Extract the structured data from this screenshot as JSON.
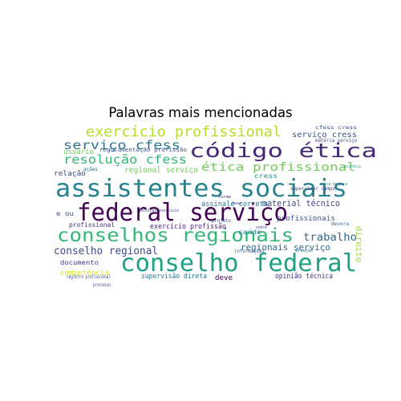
{
  "title": "Palavras mais mencionadas",
  "words": [
    {
      "text": "exercício profissional",
      "color": "#b5de2b"
    },
    {
      "text": "serviço cfess",
      "color": "#2a788e"
    },
    {
      "text": "código ética",
      "color": "#482878"
    },
    {
      "text": "resolução cfess",
      "color": "#35b779"
    },
    {
      "text": "ética profissional",
      "color": "#6ece58"
    },
    {
      "text": "assistentes sociais",
      "color": "#26828e"
    },
    {
      "text": "federal serviço",
      "color": "#440154"
    },
    {
      "text": "conselhos regionais",
      "color": "#35b779"
    },
    {
      "text": "conselho federal",
      "color": "#1fa187"
    },
    {
      "text": "conselho regional",
      "color": "#3e4989"
    },
    {
      "text": "trabalho",
      "color": "#31688e"
    },
    {
      "text": "material técnico",
      "color": "#3e4989"
    },
    {
      "text": "regionais serviço",
      "color": "#31688e"
    },
    {
      "text": "serviço cress",
      "color": "#3b528b"
    },
    {
      "text": "regional serviço",
      "color": "#6ece58"
    },
    {
      "text": "assinale correta",
      "color": "#2a788e"
    },
    {
      "text": "exercício profissão",
      "color": "#482878"
    },
    {
      "text": "profissionais",
      "color": "#3b528b"
    },
    {
      "text": "direito",
      "color": "#a0da39"
    },
    {
      "text": "usuário",
      "color": "#6ece58"
    },
    {
      "text": "regulamentação profissão",
      "color": "#3b528b"
    },
    {
      "text": "relação",
      "color": "#3e4989"
    },
    {
      "text": "ações",
      "color": "#31688e"
    },
    {
      "text": "cress",
      "color": "#21918c"
    },
    {
      "text": "saúde",
      "color": "#26828e"
    },
    {
      "text": "profissional",
      "color": "#472d7b"
    },
    {
      "text": "e ou",
      "color": "#3b528b"
    },
    {
      "text": "documento",
      "color": "#443983"
    },
    {
      "text": "competência",
      "color": "#d8e219"
    },
    {
      "text": "supervisão direta",
      "color": "#2a788e"
    },
    {
      "text": "deve",
      "color": "#440154"
    },
    {
      "text": "opinião técnica",
      "color": "#472d7b"
    },
    {
      "text": "cfess cress",
      "color": "#3e4989"
    },
    {
      "text": "matéria serviço",
      "color": "#3b528b"
    },
    {
      "text": "devera",
      "color": "#31688e"
    },
    {
      "text": "assistência",
      "color": "#1fa187"
    },
    {
      "text": "projeto",
      "color": "#3e4989"
    },
    {
      "text": "informações",
      "color": "#3b528b"
    },
    {
      "text": "atuação",
      "color": "#2a788e"
    },
    {
      "text": "supervisor campo",
      "color": "#3e4989"
    },
    {
      "text": "etica técnica",
      "color": "#2a788e"
    },
    {
      "text": "registro profissional",
      "color": "#3e4989"
    },
    {
      "text": "técnicas exercício",
      "color": "#3e4989"
    },
    {
      "text": "processo",
      "color": "#3e4989"
    },
    {
      "text": "forma",
      "color": "#482878"
    },
    {
      "text": "base",
      "color": "#3b528b"
    },
    {
      "text": "sobre",
      "color": "#3e4989"
    }
  ]
}
